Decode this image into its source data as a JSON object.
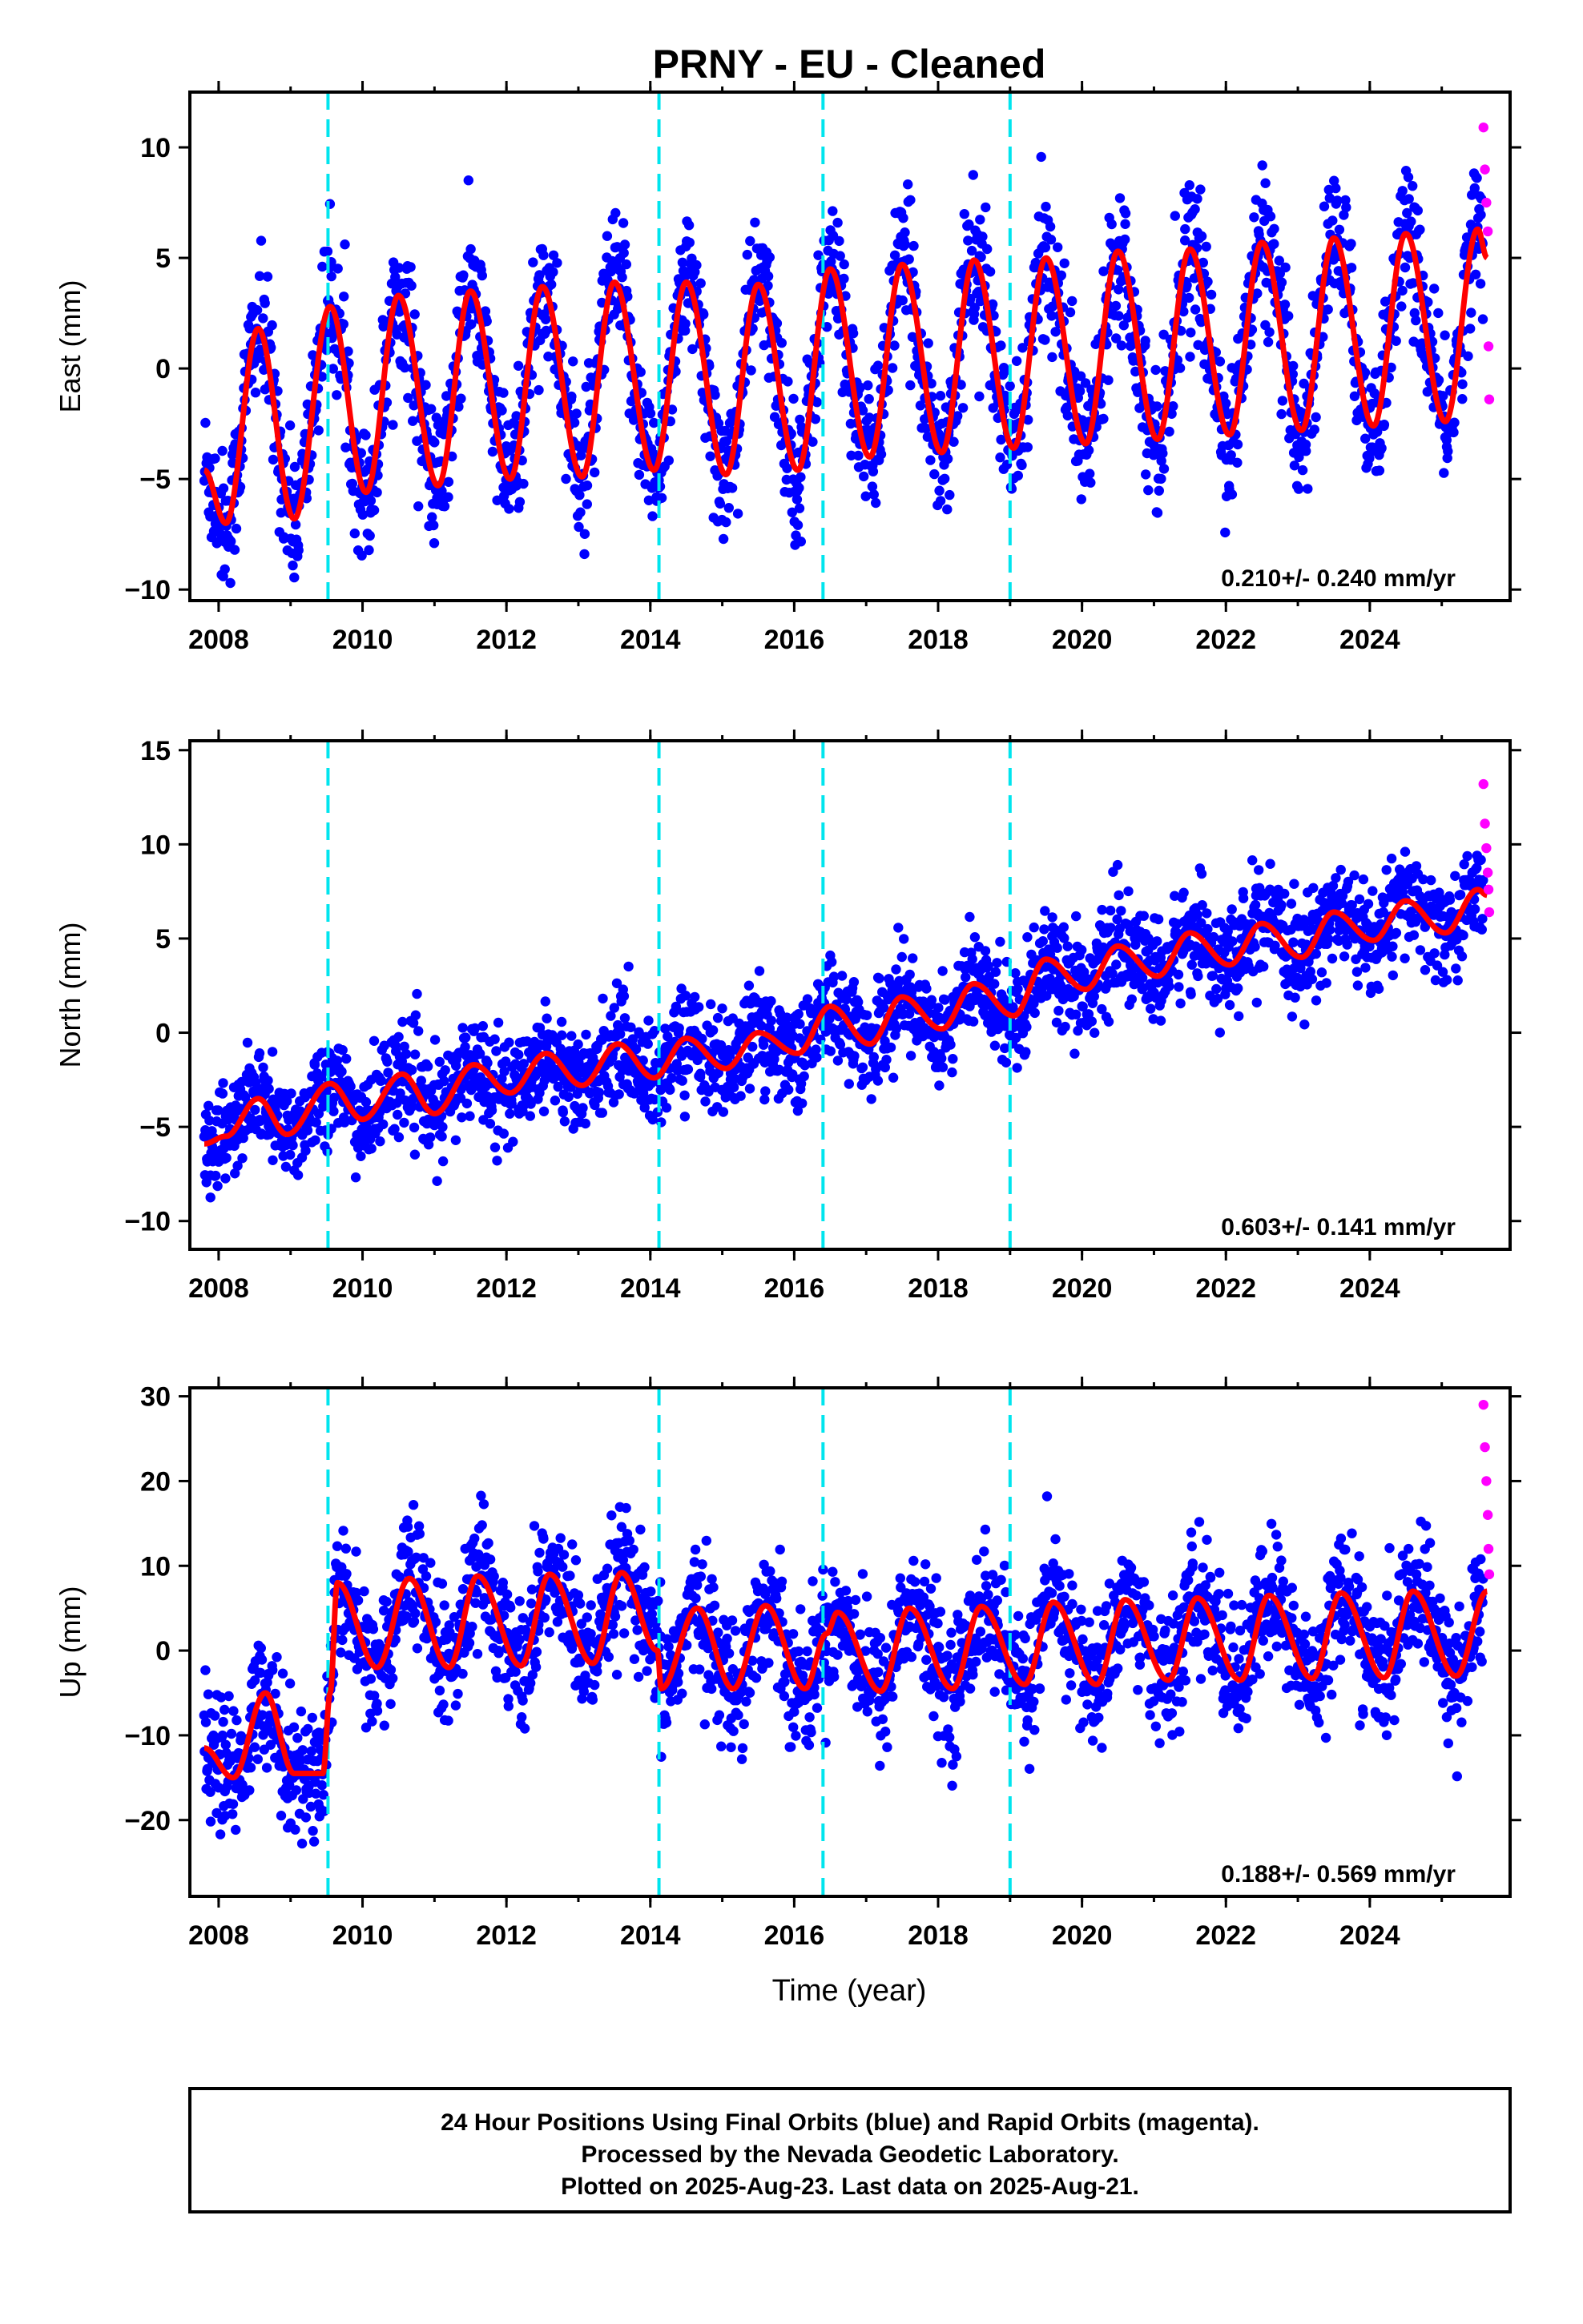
{
  "title": "PRNY  - EU - Cleaned",
  "xlabel": "Time (year)",
  "colors": {
    "final": "#0000ff",
    "rapid": "#ff00ff",
    "model": "#ff0000",
    "events": "#00e5ee",
    "frame": "#000000"
  },
  "footer": {
    "line1": "24 Hour Positions Using Final Orbits (blue) and Rapid Orbits (magenta).",
    "line2": "Processed by the Nevada Geodetic Laboratory.",
    "line3": "Plotted on 2025-Aug-23. Last data on 2025-Aug-21."
  },
  "chart_data": [
    {
      "type": "scatter",
      "ylabel": "East (mm)",
      "rate_text": "0.210+/- 0.240 mm/yr",
      "xlim": [
        2007.6,
        2025.95
      ],
      "ylim": [
        -10.5,
        12.5
      ],
      "xticks": [
        "2008",
        "2010",
        "2012",
        "2014",
        "2016",
        "2018",
        "2020",
        "2022",
        "2024"
      ],
      "yticks": [
        "-10",
        "-5",
        "0",
        "5",
        "10"
      ],
      "events": [
        2009.52,
        2014.12,
        2016.4,
        2019.0
      ],
      "model": {
        "series": "red",
        "x": [
          2007.8,
          2008.1,
          2008.55,
          2009.05,
          2009.55,
          2010.05,
          2010.5,
          2011.05,
          2011.5,
          2012.05,
          2012.5,
          2013.05,
          2013.5,
          2014.05,
          2014.5,
          2015.05,
          2015.5,
          2016.05,
          2016.5,
          2017.05,
          2017.5,
          2018.05,
          2018.5,
          2019.05,
          2019.5,
          2020.05,
          2020.5,
          2021.05,
          2021.5,
          2022.05,
          2022.5,
          2023.05,
          2023.5,
          2024.05,
          2024.5,
          2025.05,
          2025.5,
          2025.63
        ],
        "y": [
          -4.6,
          -7.0,
          1.8,
          -6.8,
          2.8,
          -5.6,
          3.3,
          -5.3,
          3.5,
          -5.0,
          3.7,
          -4.9,
          3.9,
          -4.6,
          3.9,
          -4.8,
          3.8,
          -4.6,
          4.5,
          -4.0,
          4.7,
          -3.8,
          4.9,
          -3.6,
          5.0,
          -3.4,
          5.3,
          -3.2,
          5.4,
          -3.0,
          5.7,
          -2.8,
          5.9,
          -2.6,
          6.1,
          -2.4,
          6.3,
          5.0
        ]
      },
      "final_cloud": {
        "sigma": 1.55,
        "amp_scale": 1.0
      },
      "rapid": {
        "x": [
          2025.58,
          2025.6,
          2025.62,
          2025.64,
          2025.65,
          2025.66
        ],
        "y": [
          10.9,
          9.0,
          7.5,
          6.2,
          1.0,
          -1.4
        ]
      }
    },
    {
      "type": "scatter",
      "ylabel": "North (mm)",
      "rate_text": "0.603+/- 0.141 mm/yr",
      "xlim": [
        2007.6,
        2025.95
      ],
      "ylim": [
        -11.5,
        15.5
      ],
      "xticks": [
        "2008",
        "2010",
        "2012",
        "2014",
        "2016",
        "2018",
        "2020",
        "2022",
        "2024"
      ],
      "yticks": [
        "-10",
        "-5",
        "0",
        "5",
        "10",
        "15"
      ],
      "events": [
        2009.52,
        2014.12,
        2016.4,
        2019.0
      ],
      "model": {
        "series": "red",
        "x": [
          2007.8,
          2008.1,
          2008.55,
          2008.95,
          2009.55,
          2010.0,
          2010.55,
          2011.0,
          2011.55,
          2012.05,
          2012.55,
          2013.05,
          2013.55,
          2014.05,
          2014.5,
          2015.05,
          2015.5,
          2016.05,
          2016.5,
          2017.05,
          2017.5,
          2018.05,
          2018.5,
          2019.05,
          2019.5,
          2020.05,
          2020.5,
          2021.05,
          2021.5,
          2022.05,
          2022.5,
          2023.05,
          2023.5,
          2024.05,
          2024.5,
          2025.05,
          2025.5,
          2025.63
        ],
        "y": [
          -5.9,
          -5.5,
          -3.5,
          -5.4,
          -2.7,
          -4.6,
          -2.2,
          -4.3,
          -1.7,
          -3.2,
          -1.1,
          -2.8,
          -0.6,
          -2.4,
          -0.3,
          -1.9,
          0.0,
          -1.1,
          1.4,
          -0.6,
          1.9,
          0.2,
          2.6,
          0.9,
          3.9,
          2.3,
          4.6,
          3.0,
          5.3,
          3.6,
          5.8,
          4.0,
          6.4,
          4.9,
          7.0,
          5.3,
          7.6,
          7.3
        ]
      },
      "final_cloud": {
        "sigma": 1.35,
        "amp_scale": 1.0
      },
      "rapid": {
        "x": [
          2025.58,
          2025.6,
          2025.62,
          2025.64,
          2025.65,
          2025.66
        ],
        "y": [
          13.2,
          11.1,
          9.8,
          8.5,
          7.6,
          6.4
        ]
      }
    },
    {
      "type": "scatter",
      "ylabel": "Up (mm)",
      "rate_text": "0.188+/- 0.569 mm/yr",
      "xlim": [
        2007.6,
        2025.95
      ],
      "ylim": [
        -29,
        31
      ],
      "xticks": [
        "2008",
        "2010",
        "2012",
        "2014",
        "2016",
        "2018",
        "2020",
        "2022",
        "2024"
      ],
      "yticks": [
        "-20",
        "-10",
        "0",
        "10",
        "20",
        "30"
      ],
      "events": [
        2009.52,
        2014.12,
        2016.4,
        2019.0
      ],
      "model": {
        "series": "red",
        "x": [
          2007.8,
          2008.2,
          2008.65,
          2009.05,
          2009.45,
          2009.55,
          2009.65,
          2010.2,
          2010.65,
          2011.2,
          2011.6,
          2012.2,
          2012.6,
          2013.2,
          2013.6,
          2014.1,
          2014.15,
          2014.65,
          2015.15,
          2015.6,
          2016.15,
          2016.45,
          2016.6,
          2017.2,
          2017.6,
          2018.2,
          2018.6,
          2019.2,
          2019.6,
          2020.2,
          2020.6,
          2021.2,
          2021.6,
          2022.2,
          2022.6,
          2023.2,
          2023.6,
          2024.2,
          2024.6,
          2025.2,
          2025.63
        ],
        "y": [
          -11.5,
          -15.0,
          -5.0,
          -14.5,
          -14.5,
          -5.0,
          8.0,
          -2.0,
          8.5,
          -2.0,
          8.8,
          -1.8,
          9.0,
          -1.5,
          9.2,
          0.0,
          -4.5,
          5.0,
          -4.5,
          5.3,
          -4.5,
          2.0,
          4.5,
          -4.8,
          5.0,
          -4.5,
          5.2,
          -4.0,
          5.7,
          -4.0,
          6.0,
          -3.5,
          6.2,
          -3.5,
          6.5,
          -3.3,
          6.8,
          -3.2,
          7.0,
          -3.0,
          7.0
        ]
      },
      "final_cloud": {
        "sigma": 3.8,
        "amp_scale": 1.0
      },
      "rapid": {
        "x": [
          2025.58,
          2025.6,
          2025.62,
          2025.64,
          2025.65,
          2025.66
        ],
        "y": [
          29.0,
          24.0,
          20.0,
          16.0,
          12.0,
          9.0
        ]
      }
    }
  ]
}
